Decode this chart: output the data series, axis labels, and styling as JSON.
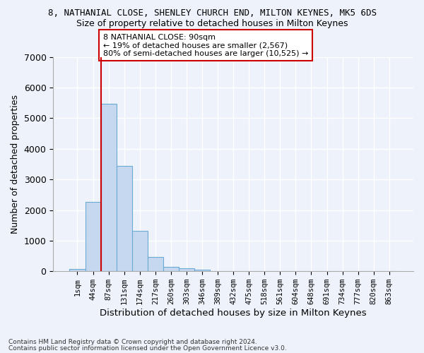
{
  "title1": "8, NATHANIAL CLOSE, SHENLEY CHURCH END, MILTON KEYNES, MK5 6DS",
  "title2": "Size of property relative to detached houses in Milton Keynes",
  "xlabel": "Distribution of detached houses by size in Milton Keynes",
  "ylabel": "Number of detached properties",
  "footnote1": "Contains HM Land Registry data © Crown copyright and database right 2024.",
  "footnote2": "Contains public sector information licensed under the Open Government Licence v3.0.",
  "annotation_line1": "8 NATHANIAL CLOSE: 90sqm",
  "annotation_line2": "← 19% of detached houses are smaller (2,567)",
  "annotation_line3": "80% of semi-detached houses are larger (10,525) →",
  "bar_color": "#c5d8ef",
  "bar_edge_color": "#6aaad4",
  "vline_color": "#cc0000",
  "vline_index": 2,
  "categories": [
    "1sqm",
    "44sqm",
    "87sqm",
    "131sqm",
    "174sqm",
    "217sqm",
    "260sqm",
    "303sqm",
    "346sqm",
    "389sqm",
    "432sqm",
    "475sqm",
    "518sqm",
    "561sqm",
    "604sqm",
    "648sqm",
    "691sqm",
    "734sqm",
    "777sqm",
    "820sqm",
    "863sqm"
  ],
  "values": [
    75,
    2270,
    5480,
    3430,
    1310,
    460,
    155,
    90,
    60,
    0,
    0,
    0,
    0,
    0,
    0,
    0,
    0,
    0,
    0,
    0,
    0
  ],
  "ylim": [
    0,
    7000
  ],
  "yticks": [
    0,
    1000,
    2000,
    3000,
    4000,
    5000,
    6000,
    7000
  ],
  "background_color": "#eef3fb",
  "grid_color": "#ffffff",
  "figsize": [
    6.0,
    5.0
  ],
  "dpi": 100
}
